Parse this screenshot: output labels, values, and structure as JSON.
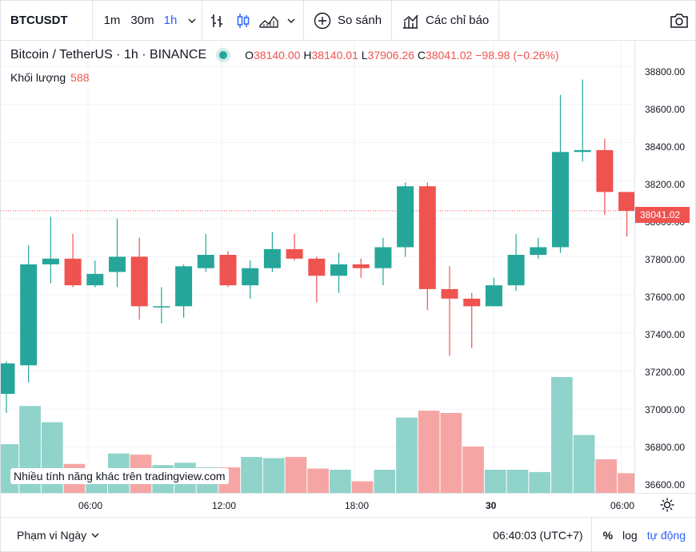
{
  "toolbar": {
    "symbol": "BTCUSDT",
    "intervals": [
      "1m",
      "30m",
      "1h"
    ],
    "active_interval": "1h",
    "compare_label": "So sánh",
    "indicators_label": "Các chỉ báo"
  },
  "legend": {
    "title": "Bitcoin / TetherUS · 1h · BINANCE",
    "open_label": "O",
    "open": "38140.00",
    "high_label": "H",
    "high": "38140.01",
    "low_label": "L",
    "low": "37906.26",
    "close_label": "C",
    "close": "38041.02",
    "change": "−98.98 (−0.26%)",
    "volume_label": "Khối lượng",
    "volume_value": "588"
  },
  "promo_text": "Nhiều tính năng khác trên tradingview.com",
  "price_axis_labels": [
    "38800.00",
    "38600.00",
    "38400.00",
    "38200.00",
    "38000.00",
    "37800.00",
    "37600.00",
    "37400.00",
    "37200.00",
    "37000.00",
    "36800.00",
    "36600.00"
  ],
  "last_price_tag": "38041.02",
  "time_axis_labels": [
    "06:00",
    "12:00",
    "18:00",
    "30",
    "06:00"
  ],
  "bottom_bar": {
    "range_label": "Phạm vi Ngày",
    "clock": "06:40:03 (UTC+7)",
    "percent": "%",
    "log": "log",
    "auto": "tự động"
  },
  "colors": {
    "up": "#26a69a",
    "down": "#ef5350",
    "vol_up": "#8fd3cb",
    "vol_down": "#f5a6a4"
  },
  "chart_data": {
    "type": "candlestick",
    "price_range": [
      36560,
      38930
    ],
    "candles": [
      {
        "o": 37080,
        "h": 37250,
        "l": 36980,
        "c": 37240
      },
      {
        "o": 37230,
        "h": 37860,
        "l": 37140,
        "c": 37760
      },
      {
        "o": 37760,
        "h": 38010,
        "l": 37660,
        "c": 37790
      },
      {
        "o": 37790,
        "h": 37920,
        "l": 37640,
        "c": 37650
      },
      {
        "o": 37650,
        "h": 37780,
        "l": 37640,
        "c": 37710
      },
      {
        "o": 37720,
        "h": 38000,
        "l": 37640,
        "c": 37800
      },
      {
        "o": 37800,
        "h": 37900,
        "l": 37470,
        "c": 37540
      },
      {
        "o": 37540,
        "h": 37640,
        "l": 37450,
        "c": 37540
      },
      {
        "o": 37540,
        "h": 37760,
        "l": 37480,
        "c": 37750
      },
      {
        "o": 37740,
        "h": 37920,
        "l": 37720,
        "c": 37810
      },
      {
        "o": 37810,
        "h": 37830,
        "l": 37640,
        "c": 37650
      },
      {
        "o": 37650,
        "h": 37780,
        "l": 37580,
        "c": 37740
      },
      {
        "o": 37740,
        "h": 37930,
        "l": 37720,
        "c": 37840
      },
      {
        "o": 37840,
        "h": 37920,
        "l": 37780,
        "c": 37790
      },
      {
        "o": 37790,
        "h": 37800,
        "l": 37560,
        "c": 37700
      },
      {
        "o": 37700,
        "h": 37820,
        "l": 37610,
        "c": 37760
      },
      {
        "o": 37760,
        "h": 37790,
        "l": 37690,
        "c": 37740
      },
      {
        "o": 37740,
        "h": 37900,
        "l": 37650,
        "c": 37850
      },
      {
        "o": 37850,
        "h": 38190,
        "l": 37800,
        "c": 38170
      },
      {
        "o": 38170,
        "h": 38190,
        "l": 37520,
        "c": 37630
      },
      {
        "o": 37630,
        "h": 37750,
        "l": 37280,
        "c": 37580
      },
      {
        "o": 37580,
        "h": 37610,
        "l": 37320,
        "c": 37540
      },
      {
        "o": 37540,
        "h": 37690,
        "l": 37540,
        "c": 37650
      },
      {
        "o": 37650,
        "h": 37920,
        "l": 37620,
        "c": 37810
      },
      {
        "o": 37810,
        "h": 37900,
        "l": 37790,
        "c": 37850
      },
      {
        "o": 37850,
        "h": 38650,
        "l": 37820,
        "c": 38350
      },
      {
        "o": 38350,
        "h": 38730,
        "l": 38300,
        "c": 38360
      },
      {
        "o": 38360,
        "h": 38420,
        "l": 38020,
        "c": 38140
      },
      {
        "o": 38140,
        "h": 38140,
        "l": 37906.26,
        "c": 38041.02
      }
    ],
    "volume_relative": [
      0.42,
      0.75,
      0.61,
      0.25,
      0.2,
      0.34,
      0.33,
      0.24,
      0.26,
      0.22,
      0.22,
      0.31,
      0.3,
      0.31,
      0.21,
      0.2,
      0.1,
      0.2,
      0.65,
      0.71,
      0.69,
      0.4,
      0.2,
      0.2,
      0.18,
      1.0,
      0.5,
      0.29,
      0.17
    ]
  }
}
